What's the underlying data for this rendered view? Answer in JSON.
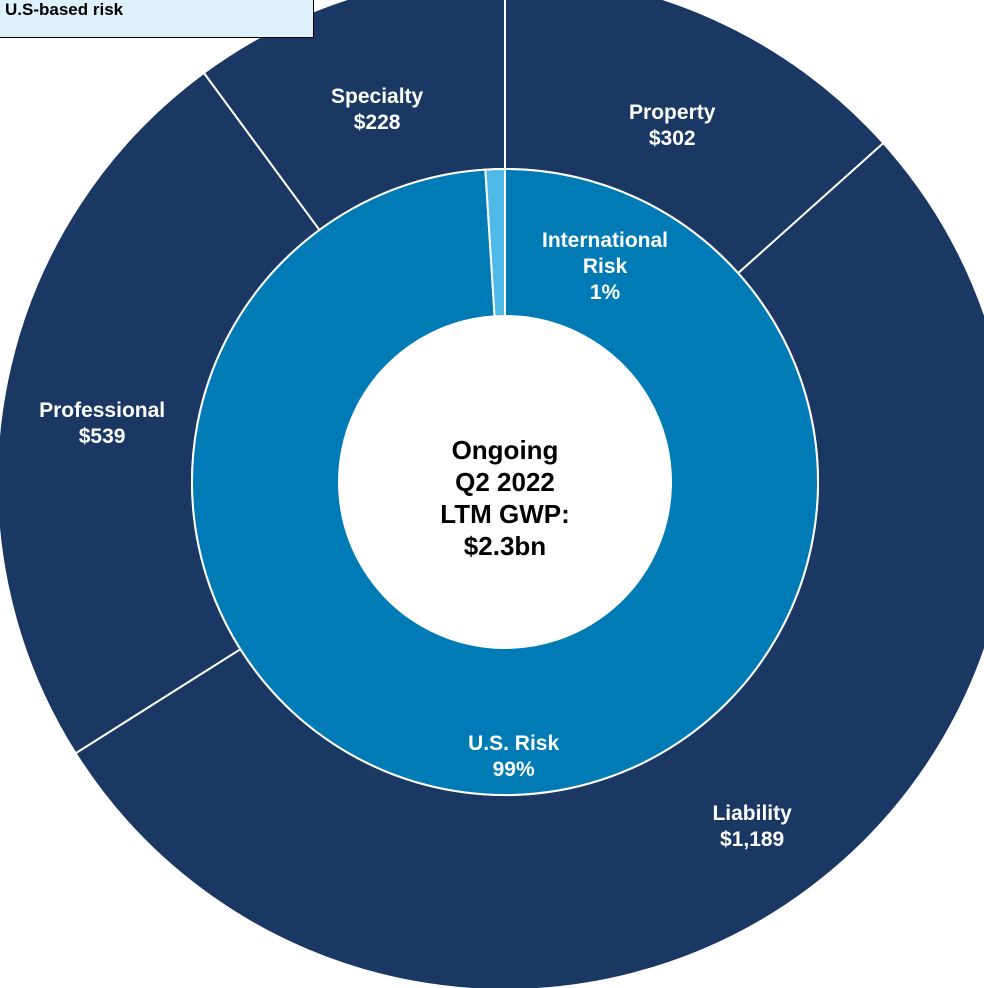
{
  "chart_data": {
    "type": "sunburst",
    "legend_box": "U.S-based risk",
    "center_label": [
      "Ongoing",
      "Q2 2022",
      "LTM GWP:",
      "$2.3bn"
    ],
    "outer": {
      "names": [
        "Property",
        "Liability",
        "Professional",
        "Specialty"
      ],
      "values": [
        302,
        1189,
        539,
        228
      ],
      "value_labels": [
        "$302",
        "$1,189",
        "$539",
        "$228"
      ],
      "color": "#1a3863"
    },
    "inner": {
      "names": [
        "U.S. Risk",
        "International Risk"
      ],
      "values": [
        99,
        1
      ],
      "value_labels": [
        "99%",
        "1%"
      ],
      "colors": [
        "#007bb6",
        "#4fb9e8"
      ]
    }
  }
}
